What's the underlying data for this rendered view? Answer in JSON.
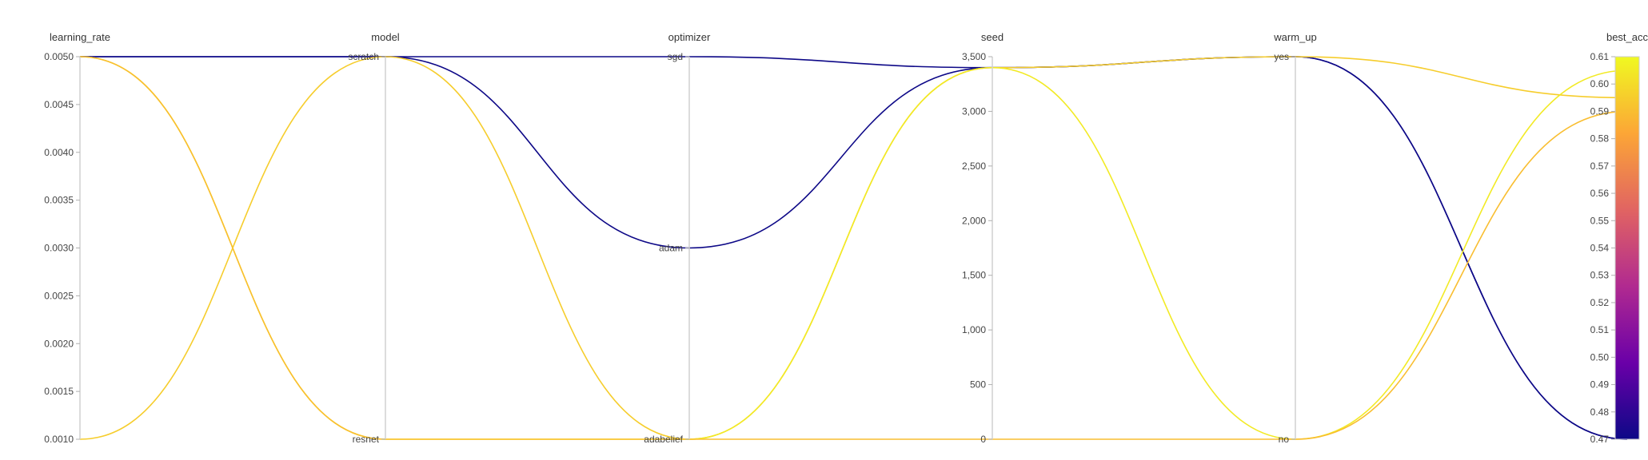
{
  "chart_data": {
    "type": "parallel_coordinates",
    "axes": [
      {
        "key": "learning_rate",
        "label": "learning_rate",
        "kind": "numeric",
        "range": [
          0.001,
          0.005
        ],
        "ticks": [
          "0.0010",
          "0.0015",
          "0.0020",
          "0.0025",
          "0.0030",
          "0.0035",
          "0.0040",
          "0.0045",
          "0.0050"
        ]
      },
      {
        "key": "model",
        "label": "model",
        "kind": "categorical",
        "categories": [
          "resnet",
          "scratch"
        ]
      },
      {
        "key": "optimizer",
        "label": "optimizer",
        "kind": "categorical",
        "categories": [
          "adabelief",
          "adam",
          "sgd"
        ]
      },
      {
        "key": "seed",
        "label": "seed",
        "kind": "numeric",
        "range": [
          0,
          3500
        ],
        "ticks": [
          "0",
          "500",
          "1,000",
          "1,500",
          "2,000",
          "2,500",
          "3,000",
          "3,500"
        ]
      },
      {
        "key": "warm_up",
        "label": "warm_up",
        "kind": "categorical",
        "categories": [
          "no",
          "yes"
        ]
      },
      {
        "key": "best_acc",
        "label": "best_acc",
        "kind": "numeric",
        "range": [
          0.47,
          0.61
        ],
        "ticks": [
          "0.47",
          "0.48",
          "0.49",
          "0.50",
          "0.51",
          "0.52",
          "0.53",
          "0.54",
          "0.55",
          "0.56",
          "0.57",
          "0.58",
          "0.59",
          "0.60",
          "0.61"
        ]
      }
    ],
    "colorscale": [
      "#0d0887",
      "#6a00a8",
      "#b12a90",
      "#e16462",
      "#fca636",
      "#f0f921"
    ],
    "colorbar_range": [
      0.47,
      0.61
    ],
    "runs": [
      {
        "learning_rate": 0.005,
        "model": "scratch",
        "optimizer": "sgd",
        "seed": 3400,
        "warm_up": "yes",
        "best_acc": 0.47
      },
      {
        "learning_rate": 0.005,
        "model": "scratch",
        "optimizer": "adam",
        "seed": 3400,
        "warm_up": "yes",
        "best_acc": 0.47
      },
      {
        "learning_rate": 0.001,
        "model": "scratch",
        "optimizer": "adabelief",
        "seed": 3400,
        "warm_up": "yes",
        "best_acc": 0.595
      },
      {
        "learning_rate": 0.005,
        "model": "resnet",
        "optimizer": "adabelief",
        "seed": 3400,
        "warm_up": "no",
        "best_acc": 0.605
      },
      {
        "learning_rate": 0.005,
        "model": "resnet",
        "optimizer": "adabelief",
        "seed": 0,
        "warm_up": "no",
        "best_acc": 0.59
      }
    ]
  }
}
